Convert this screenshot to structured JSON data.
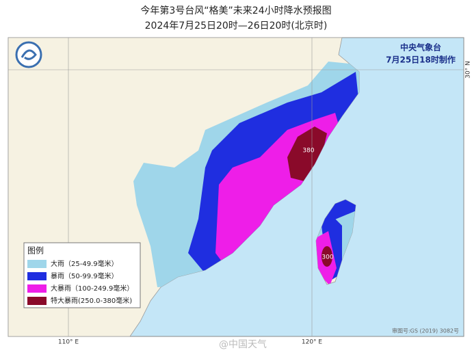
{
  "header": {
    "title": "今年第3号台风“格美”未来24小时降水预报图",
    "subtitle": "2024年7月25日20时—26日20时(北京时)"
  },
  "issuer": {
    "agency": "中央气象台",
    "issued": "7月25日18时制作"
  },
  "legend": {
    "title": "图例",
    "items": [
      {
        "label": "大雨（25-49.9毫米）",
        "color": "#9fd6ea"
      },
      {
        "label": "暴雨（50-99.9毫米）",
        "color": "#1f2ee0"
      },
      {
        "label": "大暴雨（100-249.9毫米）",
        "color": "#ee1ee8"
      },
      {
        "label": "特大暴雨(250.0-380毫米)",
        "color": "#8a0a2a"
      }
    ]
  },
  "map": {
    "peak_labels": [
      "380",
      "300"
    ],
    "axis_labels": [
      "110° E",
      "120° E",
      "30° N"
    ],
    "approval": "审图号:GS (2019) 3082号"
  },
  "watermark": "@中国天气"
}
